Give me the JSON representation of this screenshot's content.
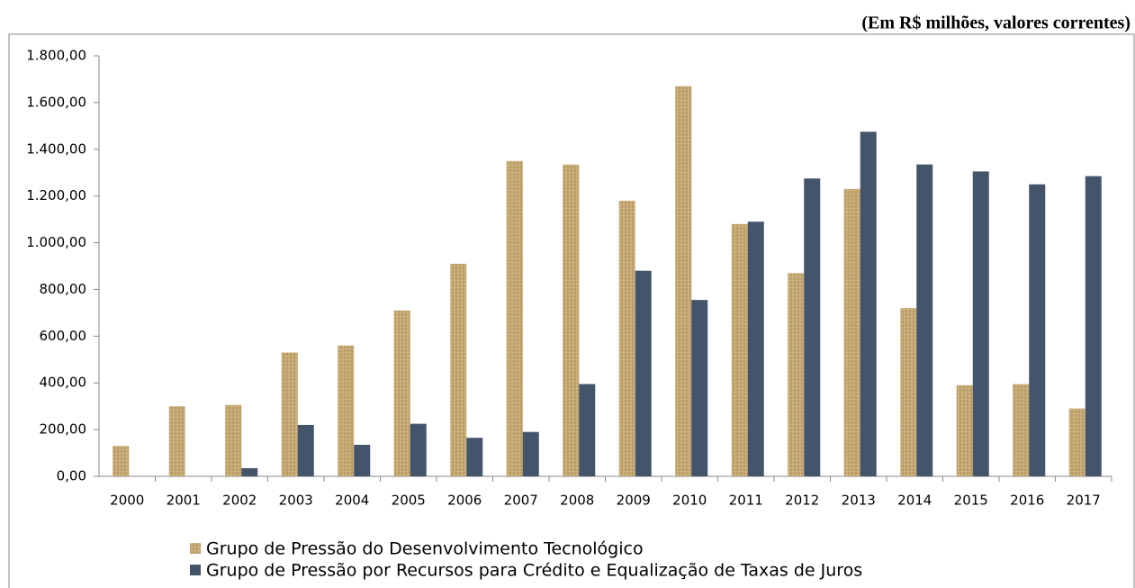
{
  "chart_data": {
    "type": "bar",
    "subtitle": "(Em R$ milhões, valores correntes)",
    "categories": [
      "2000",
      "2001",
      "2002",
      "2003",
      "2004",
      "2005",
      "2006",
      "2007",
      "2008",
      "2009",
      "2010",
      "2011",
      "2012",
      "2013",
      "2014",
      "2015",
      "2016",
      "2017"
    ],
    "series": [
      {
        "name": "Grupo de Pressão do Desenvolvimento Tecnológico",
        "color": "#c9ab72",
        "values": [
          130,
          300,
          305,
          530,
          560,
          710,
          910,
          1350,
          1335,
          1180,
          1670,
          1080,
          870,
          1230,
          720,
          390,
          395,
          290
        ]
      },
      {
        "name": "Grupo de Pressão por Recursos para Crédito e Equalização de Taxas de Juros",
        "color": "#44546a",
        "values": [
          0,
          0,
          35,
          220,
          135,
          225,
          165,
          190,
          395,
          880,
          755,
          1090,
          1275,
          1475,
          1335,
          1305,
          1250,
          1285
        ]
      }
    ],
    "ylim": [
      0,
      1800
    ],
    "yticks": [
      {
        "value": 0,
        "label": "0,00"
      },
      {
        "value": 200,
        "label": "200,00"
      },
      {
        "value": 400,
        "label": "400,00"
      },
      {
        "value": 600,
        "label": "600,00"
      },
      {
        "value": 800,
        "label": "800,00"
      },
      {
        "value": 1000,
        "label": "1.000,00"
      },
      {
        "value": 1200,
        "label": "1.200,00"
      },
      {
        "value": 1400,
        "label": "1.400,00"
      },
      {
        "value": 1600,
        "label": "1.600,00"
      },
      {
        "value": 1800,
        "label": "1.800,00"
      }
    ],
    "grid": false
  }
}
